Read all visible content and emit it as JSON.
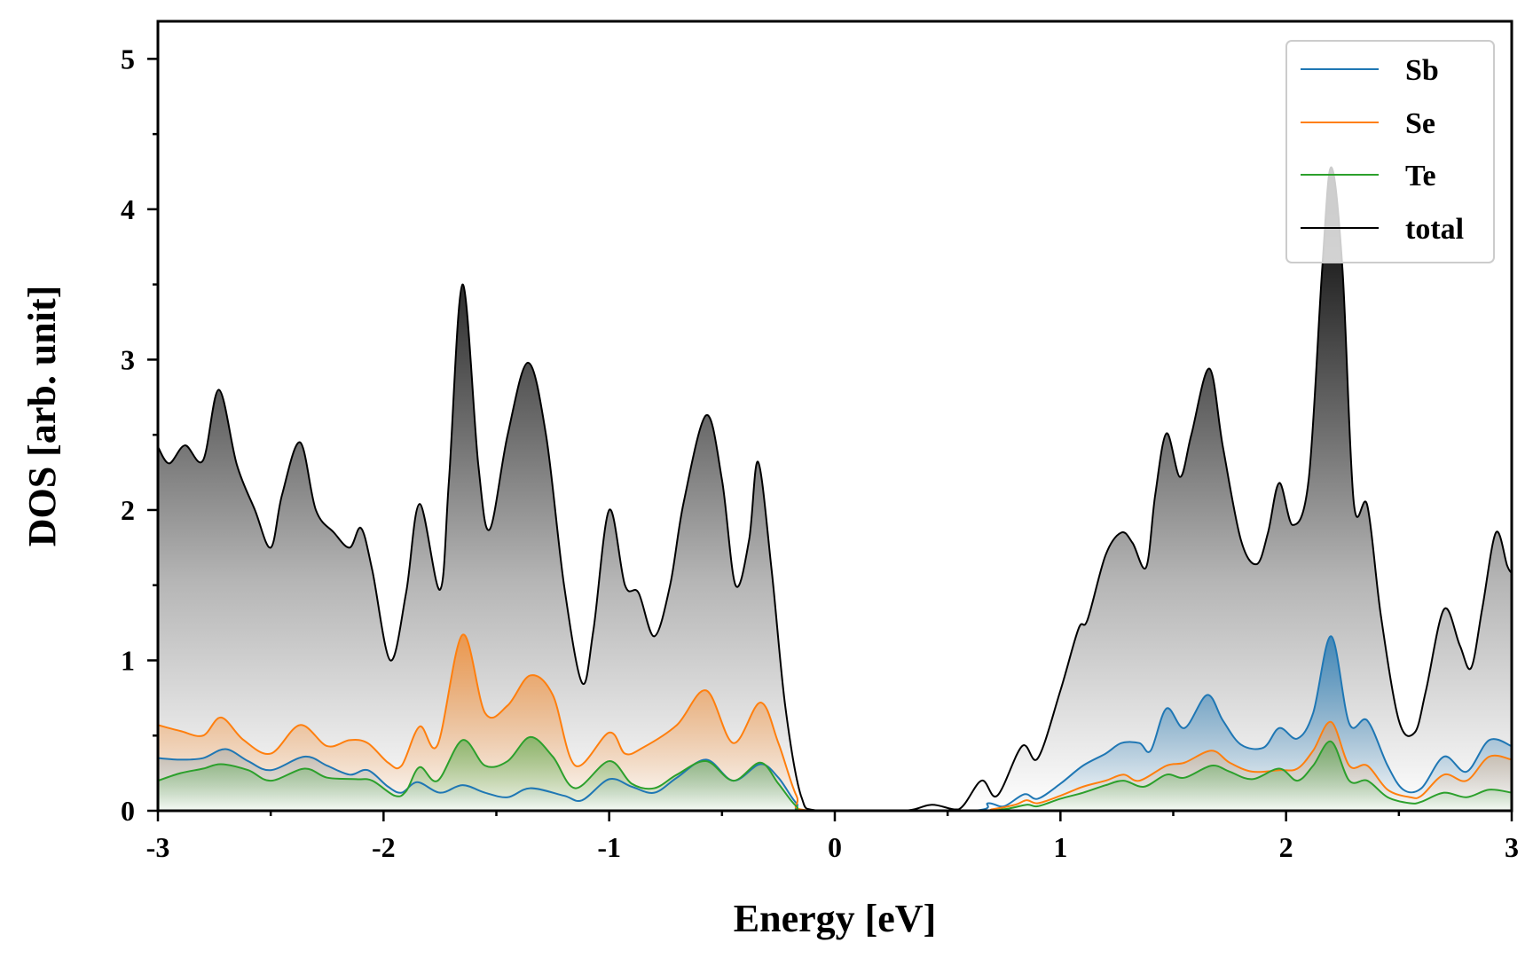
{
  "chart_data": {
    "type": "area",
    "title": "",
    "xlabel": "Energy [eV]",
    "ylabel": "DOS [arb. unit]",
    "xlim": [
      -3,
      3
    ],
    "ylim": [
      0,
      5.25
    ],
    "xticks": [
      -3,
      -2,
      -1,
      0,
      1,
      2,
      3
    ],
    "xtick_labels": [
      "-3",
      "-2",
      "-1",
      "0",
      "1",
      "2",
      "3"
    ],
    "yticks": [
      0,
      1,
      2,
      3,
      4,
      5
    ],
    "ytick_labels": [
      "0",
      "1",
      "2",
      "3",
      "4",
      "5"
    ],
    "grid": false,
    "legend_position": "top-right",
    "series": [
      {
        "name": "Sb",
        "color": "#1f77b4",
        "points": [
          [
            -3.0,
            0.35
          ],
          [
            -2.9,
            0.34
          ],
          [
            -2.8,
            0.35
          ],
          [
            -2.7,
            0.41
          ],
          [
            -2.6,
            0.33
          ],
          [
            -2.5,
            0.27
          ],
          [
            -2.35,
            0.36
          ],
          [
            -2.25,
            0.3
          ],
          [
            -2.15,
            0.24
          ],
          [
            -2.07,
            0.27
          ],
          [
            -1.98,
            0.16
          ],
          [
            -1.92,
            0.12
          ],
          [
            -1.85,
            0.19
          ],
          [
            -1.75,
            0.12
          ],
          [
            -1.65,
            0.17
          ],
          [
            -1.55,
            0.12
          ],
          [
            -1.45,
            0.09
          ],
          [
            -1.35,
            0.15
          ],
          [
            -1.2,
            0.1
          ],
          [
            -1.12,
            0.07
          ],
          [
            -1.0,
            0.21
          ],
          [
            -0.9,
            0.16
          ],
          [
            -0.8,
            0.12
          ],
          [
            -0.7,
            0.22
          ],
          [
            -0.57,
            0.34
          ],
          [
            -0.45,
            0.2
          ],
          [
            -0.33,
            0.31
          ],
          [
            -0.25,
            0.22
          ],
          [
            -0.17,
            0.05
          ],
          [
            -0.1,
            0.0
          ],
          [
            0.6,
            0.0
          ],
          [
            0.68,
            0.05
          ],
          [
            0.75,
            0.03
          ],
          [
            0.84,
            0.11
          ],
          [
            0.9,
            0.08
          ],
          [
            1.0,
            0.18
          ],
          [
            1.1,
            0.3
          ],
          [
            1.2,
            0.38
          ],
          [
            1.27,
            0.45
          ],
          [
            1.35,
            0.45
          ],
          [
            1.4,
            0.4
          ],
          [
            1.47,
            0.68
          ],
          [
            1.55,
            0.55
          ],
          [
            1.65,
            0.77
          ],
          [
            1.72,
            0.6
          ],
          [
            1.8,
            0.44
          ],
          [
            1.9,
            0.42
          ],
          [
            1.97,
            0.55
          ],
          [
            2.05,
            0.48
          ],
          [
            2.12,
            0.65
          ],
          [
            2.2,
            1.16
          ],
          [
            2.28,
            0.58
          ],
          [
            2.36,
            0.6
          ],
          [
            2.45,
            0.3
          ],
          [
            2.52,
            0.14
          ],
          [
            2.6,
            0.15
          ],
          [
            2.7,
            0.36
          ],
          [
            2.8,
            0.26
          ],
          [
            2.9,
            0.47
          ],
          [
            3.0,
            0.43
          ]
        ]
      },
      {
        "name": "Se",
        "color": "#ff7f0e",
        "points": [
          [
            -3.0,
            0.57
          ],
          [
            -2.9,
            0.53
          ],
          [
            -2.8,
            0.5
          ],
          [
            -2.72,
            0.62
          ],
          [
            -2.62,
            0.47
          ],
          [
            -2.5,
            0.38
          ],
          [
            -2.37,
            0.57
          ],
          [
            -2.25,
            0.43
          ],
          [
            -2.15,
            0.47
          ],
          [
            -2.07,
            0.45
          ],
          [
            -1.98,
            0.32
          ],
          [
            -1.92,
            0.3
          ],
          [
            -1.84,
            0.56
          ],
          [
            -1.76,
            0.44
          ],
          [
            -1.65,
            1.17
          ],
          [
            -1.55,
            0.65
          ],
          [
            -1.45,
            0.7
          ],
          [
            -1.35,
            0.9
          ],
          [
            -1.25,
            0.77
          ],
          [
            -1.15,
            0.3
          ],
          [
            -1.0,
            0.52
          ],
          [
            -0.93,
            0.38
          ],
          [
            -0.85,
            0.42
          ],
          [
            -0.7,
            0.57
          ],
          [
            -0.57,
            0.8
          ],
          [
            -0.45,
            0.45
          ],
          [
            -0.33,
            0.72
          ],
          [
            -0.25,
            0.45
          ],
          [
            -0.17,
            0.1
          ],
          [
            -0.1,
            0.0
          ],
          [
            0.6,
            0.0
          ],
          [
            0.7,
            0.01
          ],
          [
            0.8,
            0.04
          ],
          [
            0.85,
            0.07
          ],
          [
            0.9,
            0.05
          ],
          [
            1.0,
            0.1
          ],
          [
            1.1,
            0.16
          ],
          [
            1.2,
            0.2
          ],
          [
            1.28,
            0.24
          ],
          [
            1.35,
            0.2
          ],
          [
            1.47,
            0.3
          ],
          [
            1.55,
            0.32
          ],
          [
            1.67,
            0.4
          ],
          [
            1.75,
            0.32
          ],
          [
            1.85,
            0.26
          ],
          [
            1.97,
            0.27
          ],
          [
            2.05,
            0.28
          ],
          [
            2.12,
            0.4
          ],
          [
            2.2,
            0.59
          ],
          [
            2.28,
            0.3
          ],
          [
            2.36,
            0.3
          ],
          [
            2.45,
            0.14
          ],
          [
            2.55,
            0.09
          ],
          [
            2.6,
            0.1
          ],
          [
            2.7,
            0.24
          ],
          [
            2.8,
            0.2
          ],
          [
            2.9,
            0.36
          ],
          [
            3.0,
            0.34
          ]
        ]
      },
      {
        "name": "Te",
        "color": "#2ca02c",
        "points": [
          [
            -3.0,
            0.2
          ],
          [
            -2.9,
            0.25
          ],
          [
            -2.8,
            0.28
          ],
          [
            -2.72,
            0.31
          ],
          [
            -2.6,
            0.27
          ],
          [
            -2.5,
            0.2
          ],
          [
            -2.35,
            0.28
          ],
          [
            -2.25,
            0.22
          ],
          [
            -2.12,
            0.21
          ],
          [
            -2.05,
            0.2
          ],
          [
            -1.95,
            0.1
          ],
          [
            -1.9,
            0.13
          ],
          [
            -1.84,
            0.29
          ],
          [
            -1.76,
            0.2
          ],
          [
            -1.65,
            0.47
          ],
          [
            -1.55,
            0.3
          ],
          [
            -1.45,
            0.33
          ],
          [
            -1.35,
            0.49
          ],
          [
            -1.25,
            0.36
          ],
          [
            -1.15,
            0.15
          ],
          [
            -1.0,
            0.33
          ],
          [
            -0.9,
            0.18
          ],
          [
            -0.8,
            0.15
          ],
          [
            -0.7,
            0.24
          ],
          [
            -0.57,
            0.33
          ],
          [
            -0.45,
            0.2
          ],
          [
            -0.33,
            0.32
          ],
          [
            -0.25,
            0.18
          ],
          [
            -0.17,
            0.03
          ],
          [
            -0.1,
            0.0
          ],
          [
            0.6,
            0.0
          ],
          [
            0.75,
            0.01
          ],
          [
            0.85,
            0.04
          ],
          [
            0.9,
            0.03
          ],
          [
            1.0,
            0.08
          ],
          [
            1.1,
            0.12
          ],
          [
            1.2,
            0.17
          ],
          [
            1.28,
            0.2
          ],
          [
            1.37,
            0.16
          ],
          [
            1.47,
            0.24
          ],
          [
            1.55,
            0.22
          ],
          [
            1.67,
            0.3
          ],
          [
            1.75,
            0.26
          ],
          [
            1.85,
            0.21
          ],
          [
            1.97,
            0.28
          ],
          [
            2.05,
            0.2
          ],
          [
            2.12,
            0.3
          ],
          [
            2.2,
            0.46
          ],
          [
            2.28,
            0.2
          ],
          [
            2.36,
            0.2
          ],
          [
            2.45,
            0.09
          ],
          [
            2.55,
            0.05
          ],
          [
            2.6,
            0.06
          ],
          [
            2.7,
            0.12
          ],
          [
            2.8,
            0.09
          ],
          [
            2.9,
            0.14
          ],
          [
            3.0,
            0.12
          ]
        ]
      },
      {
        "name": "total",
        "color": "#000000",
        "points": [
          [
            -3.0,
            2.42
          ],
          [
            -2.95,
            2.31
          ],
          [
            -2.88,
            2.43
          ],
          [
            -2.8,
            2.33
          ],
          [
            -2.73,
            2.8
          ],
          [
            -2.65,
            2.3
          ],
          [
            -2.57,
            2.0
          ],
          [
            -2.5,
            1.75
          ],
          [
            -2.45,
            2.1
          ],
          [
            -2.37,
            2.45
          ],
          [
            -2.3,
            2.0
          ],
          [
            -2.22,
            1.85
          ],
          [
            -2.15,
            1.75
          ],
          [
            -2.1,
            1.88
          ],
          [
            -2.05,
            1.6
          ],
          [
            -1.97,
            1.0
          ],
          [
            -1.9,
            1.45
          ],
          [
            -1.84,
            2.04
          ],
          [
            -1.75,
            1.47
          ],
          [
            -1.71,
            2.2
          ],
          [
            -1.65,
            3.5
          ],
          [
            -1.58,
            2.3
          ],
          [
            -1.53,
            1.87
          ],
          [
            -1.45,
            2.5
          ],
          [
            -1.36,
            2.98
          ],
          [
            -1.28,
            2.5
          ],
          [
            -1.2,
            1.5
          ],
          [
            -1.12,
            0.85
          ],
          [
            -1.07,
            1.2
          ],
          [
            -1.0,
            2.0
          ],
          [
            -0.93,
            1.5
          ],
          [
            -0.87,
            1.45
          ],
          [
            -0.8,
            1.16
          ],
          [
            -0.73,
            1.5
          ],
          [
            -0.67,
            2.05
          ],
          [
            -0.57,
            2.63
          ],
          [
            -0.5,
            2.2
          ],
          [
            -0.44,
            1.5
          ],
          [
            -0.38,
            1.8
          ],
          [
            -0.34,
            2.32
          ],
          [
            -0.28,
            1.6
          ],
          [
            -0.22,
            0.7
          ],
          [
            -0.15,
            0.1
          ],
          [
            -0.07,
            0.0
          ],
          [
            0.3,
            0.0
          ],
          [
            0.43,
            0.04
          ],
          [
            0.55,
            0.01
          ],
          [
            0.65,
            0.2
          ],
          [
            0.72,
            0.1
          ],
          [
            0.83,
            0.43
          ],
          [
            0.9,
            0.35
          ],
          [
            1.0,
            0.8
          ],
          [
            1.08,
            1.21
          ],
          [
            1.12,
            1.27
          ],
          [
            1.2,
            1.7
          ],
          [
            1.27,
            1.85
          ],
          [
            1.32,
            1.78
          ],
          [
            1.38,
            1.62
          ],
          [
            1.42,
            2.1
          ],
          [
            1.47,
            2.51
          ],
          [
            1.53,
            2.22
          ],
          [
            1.58,
            2.5
          ],
          [
            1.66,
            2.94
          ],
          [
            1.72,
            2.42
          ],
          [
            1.8,
            1.8
          ],
          [
            1.87,
            1.64
          ],
          [
            1.92,
            1.85
          ],
          [
            1.97,
            2.18
          ],
          [
            2.03,
            1.9
          ],
          [
            2.1,
            2.2
          ],
          [
            2.16,
            3.6
          ],
          [
            2.2,
            4.28
          ],
          [
            2.25,
            3.6
          ],
          [
            2.3,
            2.05
          ],
          [
            2.36,
            2.03
          ],
          [
            2.42,
            1.3
          ],
          [
            2.5,
            0.6
          ],
          [
            2.57,
            0.52
          ],
          [
            2.62,
            0.8
          ],
          [
            2.7,
            1.34
          ],
          [
            2.77,
            1.1
          ],
          [
            2.82,
            0.95
          ],
          [
            2.87,
            1.35
          ],
          [
            2.93,
            1.85
          ],
          [
            2.98,
            1.63
          ],
          [
            3.0,
            1.58
          ]
        ]
      }
    ]
  }
}
